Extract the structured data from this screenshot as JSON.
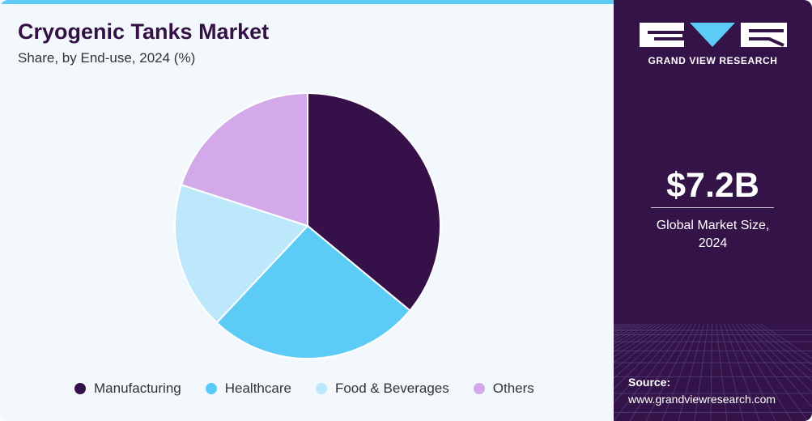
{
  "header": {
    "title": "Cryogenic Tanks Market",
    "subtitle": "Share, by End-use, 2024 (%)"
  },
  "chart_data": {
    "type": "pie",
    "title": "Cryogenic Tanks Market",
    "subtitle": "Share, by End-use, 2024 (%)",
    "categories": [
      "Manufacturing",
      "Healthcare",
      "Food & Beverages",
      "Others"
    ],
    "values": [
      36,
      26,
      18,
      20
    ],
    "colors": [
      "#361048",
      "#5ccbf5",
      "#bde8fb",
      "#d4a9ea"
    ],
    "legend_position": "bottom"
  },
  "sidebar": {
    "brand": "GRAND VIEW RESEARCH",
    "market_value": "$7.2B",
    "market_caption_line1": "Global Market Size,",
    "market_caption_line2": "2024",
    "source_label": "Source:",
    "source_url": "www.grandviewresearch.com"
  }
}
